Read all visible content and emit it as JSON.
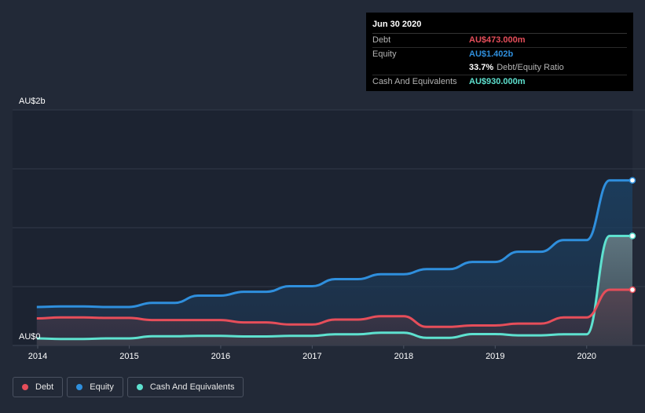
{
  "chart_data": {
    "type": "area",
    "y_top_label": "AU$2b",
    "y_bottom_label": "AU$0",
    "ylim": [
      0,
      2000
    ],
    "unit": "AU$m",
    "x_ticks": [
      "2014",
      "2015",
      "2016",
      "2017",
      "2018",
      "2019",
      "2020"
    ],
    "xlim": [
      2014.0,
      2020.5
    ],
    "series": [
      {
        "name": "Equity",
        "color": "#2f8fdd",
        "x": [
          2013.99,
          2014.25,
          2014.5,
          2014.75,
          2015.0,
          2015.25,
          2015.5,
          2015.75,
          2016.0,
          2016.25,
          2016.5,
          2016.75,
          2017.0,
          2017.25,
          2017.5,
          2017.75,
          2018.0,
          2018.25,
          2018.5,
          2018.75,
          2019.0,
          2019.25,
          2019.5,
          2019.75,
          2020.0,
          2020.25,
          2020.5
        ],
        "values": [
          327,
          332,
          332,
          327,
          327,
          362,
          362,
          423,
          423,
          456,
          456,
          503,
          503,
          563,
          563,
          605,
          605,
          648,
          648,
          709,
          709,
          796,
          796,
          895,
          895,
          1402,
          1402
        ]
      },
      {
        "name": "Cash And Equivalents",
        "color": "#5ee1cf",
        "x": [
          2013.99,
          2014.25,
          2014.5,
          2014.75,
          2015.0,
          2015.25,
          2015.5,
          2015.75,
          2016.0,
          2016.25,
          2016.5,
          2016.75,
          2017.0,
          2017.25,
          2017.5,
          2017.75,
          2018.0,
          2018.25,
          2018.5,
          2018.75,
          2019.0,
          2019.25,
          2019.5,
          2019.75,
          2020.0,
          2020.25,
          2020.5
        ],
        "values": [
          60,
          55,
          55,
          60,
          60,
          78,
          78,
          82,
          82,
          77,
          77,
          82,
          82,
          95,
          95,
          108,
          108,
          65,
          65,
          97,
          97,
          86,
          86,
          95,
          95,
          930,
          930
        ]
      },
      {
        "name": "Debt",
        "color": "#e64e5a",
        "x": [
          2013.99,
          2014.25,
          2014.5,
          2014.75,
          2015.0,
          2015.25,
          2015.5,
          2015.75,
          2016.0,
          2016.25,
          2016.5,
          2016.75,
          2017.0,
          2017.25,
          2017.5,
          2017.75,
          2018.0,
          2018.25,
          2018.5,
          2018.75,
          2019.0,
          2019.25,
          2019.5,
          2019.75,
          2020.0,
          2020.25,
          2020.5
        ],
        "values": [
          230,
          238,
          238,
          234,
          234,
          216,
          216,
          216,
          216,
          196,
          196,
          178,
          178,
          220,
          220,
          248,
          248,
          158,
          158,
          170,
          170,
          186,
          186,
          238,
          238,
          473,
          473
        ]
      }
    ]
  },
  "tooltip": {
    "date": "Jun 30 2020",
    "debt_label": "Debt",
    "debt_value": "AU$473.000m",
    "equity_label": "Equity",
    "equity_value": "AU$1.402b",
    "ratio_value": "33.7%",
    "ratio_label": "Debt/Equity Ratio",
    "cash_label": "Cash And Equivalents",
    "cash_value": "AU$930.000m",
    "colors": {
      "debt": "#e64e5a",
      "equity": "#2f8fdd",
      "cash": "#5ee1cf"
    }
  },
  "legend": {
    "items": [
      {
        "label": "Debt",
        "color": "#e64e5a"
      },
      {
        "label": "Equity",
        "color": "#2f8fdd"
      },
      {
        "label": "Cash And Equivalents",
        "color": "#5ee1cf"
      }
    ]
  }
}
